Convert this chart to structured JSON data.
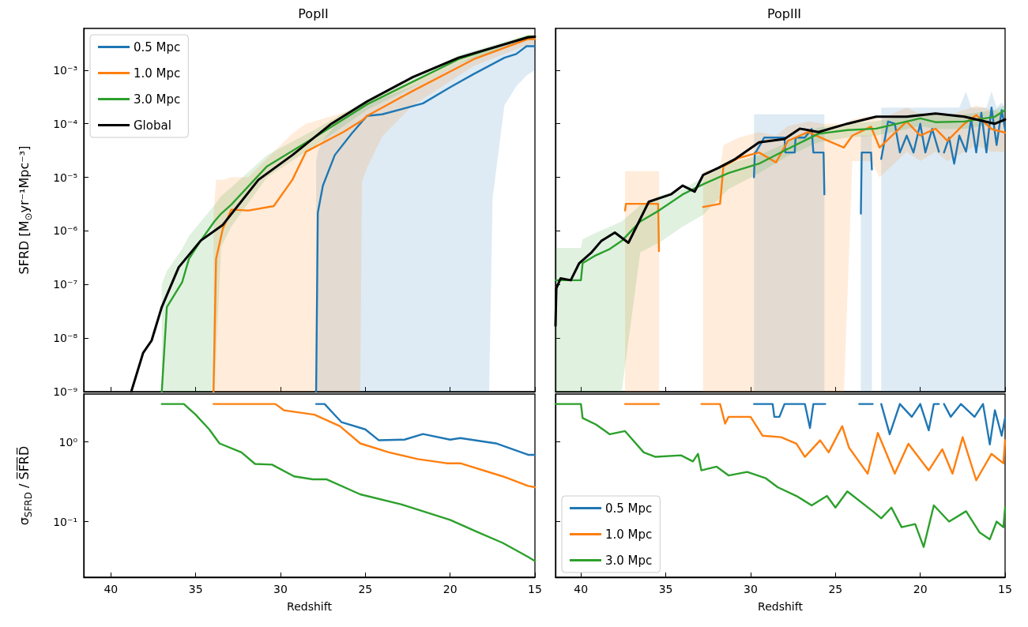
{
  "chart_data": [
    {
      "type": "line",
      "title": "PopII",
      "ylabel": "SFRD [M$_{⊙}$yr⁻¹Mpc⁻³]",
      "log": "y",
      "xlim": [
        41.6,
        15
      ],
      "xticks": [
        40,
        35,
        30,
        25,
        20,
        15
      ],
      "ylim": [
        1e-09,
        0.006
      ],
      "yticks": [
        {
          "value": 1e-09,
          "label": "10⁻⁹"
        },
        {
          "value": 1e-08,
          "label": "10⁻⁸"
        },
        {
          "value": 1e-07,
          "label": "10⁻⁷"
        },
        {
          "value": 1e-06,
          "label": "10⁻⁶"
        },
        {
          "value": 1e-05,
          "label": "10⁻⁵"
        },
        {
          "value": 0.0001,
          "label": "10⁻⁴"
        },
        {
          "value": 0.001,
          "label": "10⁻³"
        }
      ],
      "tick_labels": "y",
      "legend": "top left",
      "series": [
        {
          "name": "0.5 Mpc",
          "color": "#1f77b4",
          "x": [
            27.9,
            27.8,
            27.5,
            26.8,
            25.8,
            24.9,
            24.0,
            21.6,
            20.0,
            18.6,
            17.7,
            17.5,
            16.8,
            16.1,
            15.5,
            15.0
          ],
          "values": [
            1e-09,
            2.2e-06,
            7e-06,
            2.6e-05,
            6.6e-05,
            0.00014,
            0.00015,
            0.00024,
            0.00048,
            0.00085,
            0.0012,
            0.0013,
            0.0017,
            0.002,
            0.0028,
            0.0028
          ],
          "lower": [
            1e-09,
            1e-09,
            1e-09,
            1e-09,
            1e-09,
            1e-09,
            1e-09,
            1e-09,
            1e-09,
            1e-09,
            1e-09,
            4e-06,
            0.00022,
            0.0005,
            0.00079,
            0.001
          ],
          "upper": [
            2e-05,
            3e-05,
            5e-05,
            9e-05,
            0.00015,
            0.00025,
            0.0003,
            0.0006,
            0.0011,
            0.0018,
            0.0023,
            0.0024,
            0.003,
            0.0035,
            0.004,
            0.0043
          ]
        },
        {
          "name": "1.0 Mpc",
          "color": "#ff7f0e",
          "x": [
            33.95,
            33.8,
            33.4,
            32.9,
            31.9,
            30.4,
            29.3,
            28.5,
            26.3,
            25.3,
            25.2,
            24.9,
            24.0,
            22.2,
            18.6,
            15.4,
            15.0
          ],
          "values": [
            1e-09,
            3e-07,
            1.1e-06,
            2.5e-06,
            2.4e-06,
            2.9e-06,
            9e-06,
            3e-05,
            7e-05,
            0.00011,
            0.000115,
            0.00014,
            0.0002,
            0.00041,
            0.0016,
            0.0038,
            0.0038
          ],
          "lower": [
            1e-09,
            1e-09,
            1e-09,
            1e-09,
            1e-09,
            1e-09,
            1e-09,
            1e-09,
            1e-09,
            1e-09,
            8e-06,
            1.5e-05,
            5.8e-05,
            0.00022,
            0.0012,
            0.003,
            0.003
          ],
          "upper": [
            2e-06,
            9e-06,
            9e-06,
            1e-05,
            1e-05,
            3e-05,
            6.6e-05,
            0.0001,
            0.00016,
            0.0002,
            0.00021,
            0.00026,
            0.00035,
            0.00065,
            0.002,
            0.0045,
            0.0046
          ]
        },
        {
          "name": "3.0 Mpc",
          "color": "#2ca02c",
          "x": [
            37.0,
            36.7,
            35.8,
            35.4,
            34.7,
            33.9,
            33.5,
            32.9,
            30.8,
            27.9,
            24.9,
            19.5,
            15.4,
            15.0
          ],
          "values": [
            1e-09,
            3.8e-08,
            1.1e-07,
            3e-07,
            6.6e-07,
            1.5e-06,
            2.1e-06,
            3.1e-06,
            1.6e-05,
            5.8e-05,
            0.00023,
            0.0016,
            0.0042,
            0.0042
          ],
          "lower": [
            1e-09,
            1e-09,
            1e-09,
            1e-09,
            1e-09,
            1e-09,
            5e-07,
            1.2e-06,
            1e-05,
            4e-05,
            0.00018,
            0.0013,
            0.0038,
            0.0038
          ],
          "upper": [
            1e-07,
            1.8e-07,
            4.6e-07,
            8e-07,
            1.5e-06,
            3e-06,
            4.5e-06,
            6.5e-06,
            2.6e-05,
            8e-05,
            0.00028,
            0.0019,
            0.0046,
            0.0046
          ]
        },
        {
          "name": "Global",
          "color": "#000000",
          "x": [
            38.8,
            38.1,
            37.6,
            37.0,
            36.0,
            34.7,
            33.4,
            31.3,
            29.3,
            27.0,
            24.9,
            22.2,
            19.5,
            15.4,
            15.0
          ],
          "values": [
            1e-09,
            5.3e-09,
            9e-09,
            3.8e-08,
            2.1e-07,
            6.6e-07,
            1.3e-06,
            9e-06,
            2.6e-05,
            0.0001,
            0.00026,
            0.00074,
            0.0017,
            0.0041,
            0.0042
          ]
        }
      ]
    },
    {
      "type": "line",
      "title": "PopIII",
      "log": "y",
      "xlim": [
        41.5,
        15
      ],
      "xticks": [
        40,
        35,
        30,
        25,
        20,
        15
      ],
      "ylim": [
        1e-09,
        0.006
      ],
      "yticks": [
        1e-09,
        1e-08,
        1e-07,
        1e-06,
        1e-05,
        0.0001,
        0.001
      ],
      "tick_labels": false,
      "series": [
        {
          "color": "#1f77b4",
          "x": [
            29.8,
            29.75,
            29.7,
            29.2,
            28.0,
            27.95,
            27.4,
            27.35,
            26.8,
            26.4,
            26.3,
            25.7,
            25.65,
            25.6,
            23.5,
            23.45,
            22.9,
            22.85,
            22.8,
            22.3,
            21.9,
            21.5,
            21.2,
            20.8,
            20.4,
            20.0,
            19.7,
            19.3,
            18.9,
            18.8,
            18.6,
            18.3,
            18.0,
            17.7,
            17.3,
            17.0,
            16.7,
            16.4,
            16.1,
            15.8,
            15.5,
            15.2,
            15.0
          ],
          "values": [
            1e-05,
            2.9e-05,
            2.9e-05,
            5.5e-05,
            5.5e-05,
            2.9e-05,
            2.9e-05,
            5.5e-05,
            5.5e-05,
            8e-05,
            2.9e-05,
            2.9e-05,
            4.8e-06,
            null,
            2.1e-06,
            2.9e-05,
            2.9e-05,
            1.4e-05,
            null,
            2.2e-05,
            0.00011,
            0.0001,
            2.9e-05,
            6e-05,
            2.9e-05,
            0.0001,
            2.9e-05,
            8e-05,
            3e-05,
            null,
            2.9e-05,
            5.5e-05,
            1.8e-05,
            6e-05,
            3e-05,
            0.00012,
            2.9e-05,
            0.00016,
            2.9e-05,
            0.0002,
            4e-05,
            0.00018,
            8e-05
          ],
          "lower": [
            1e-09,
            1e-09,
            1e-09,
            1e-09,
            1e-09,
            1e-09,
            1e-09,
            1e-09,
            1e-09,
            1e-09,
            1e-09,
            1e-09,
            1e-09,
            null,
            1e-09,
            1e-09,
            1e-09,
            1e-09,
            null,
            1e-09,
            1e-09,
            1e-09,
            1e-09,
            1e-09,
            1e-09,
            1e-09,
            1e-09,
            1e-09,
            1e-09,
            1e-09,
            1e-09,
            1e-09,
            1e-09,
            1e-09,
            1e-09,
            1e-09,
            1e-09,
            1e-09,
            1e-09,
            1e-09,
            1e-09,
            1e-09,
            1e-09
          ],
          "upper": [
            0.00015,
            0.00015,
            0.00015,
            0.00015,
            0.00015,
            0.00015,
            0.00015,
            0.00015,
            0.00015,
            0.00015,
            0.00015,
            0.00015,
            0.00015,
            null,
            6e-05,
            6e-05,
            6e-05,
            6e-05,
            null,
            0.0002,
            0.0002,
            0.0002,
            0.0002,
            0.0002,
            0.0002,
            0.0002,
            0.0002,
            0.0002,
            0.0002,
            0.0002,
            0.0002,
            0.0002,
            0.0002,
            0.0002,
            0.0004,
            0.0002,
            0.0002,
            0.0002,
            0.0002,
            0.0004,
            0.0002,
            0.00025,
            0.0002
          ]
        },
        {
          "color": "#ff7f0e",
          "x": [
            37.4,
            37.35,
            35.45,
            35.4,
            35.35,
            32.8,
            31.8,
            31.6,
            30.7,
            29.5,
            28.5,
            27.8,
            26.6,
            25.7,
            24.5,
            24.0,
            22.9,
            22.4,
            20.8,
            20.0,
            19.1,
            18.4,
            17.4,
            16.7,
            15.8,
            15.0
          ],
          "values": [
            2.4e-06,
            3.2e-06,
            3.2e-06,
            4.2e-07,
            null,
            2.8e-06,
            3.2e-06,
            1.6e-05,
            2.3e-05,
            2.9e-05,
            1.9e-05,
            4.8e-05,
            7e-05,
            5.2e-05,
            3.6e-05,
            6e-05,
            8.8e-05,
            3.6e-05,
            0.00011,
            6e-05,
            8.1e-05,
            4.8e-05,
            0.0001,
            0.000145,
            8e-05,
            6.8e-05
          ],
          "lower": [
            1e-09,
            1e-09,
            1e-09,
            1e-09,
            null,
            1e-09,
            1e-09,
            1e-09,
            1e-09,
            1e-09,
            1e-09,
            1e-09,
            1e-09,
            1e-09,
            1e-09,
            2e-05,
            2e-05,
            1e-05,
            3e-05,
            2e-05,
            3e-05,
            2e-05,
            3e-05,
            4e-05,
            3e-05,
            3e-05
          ],
          "upper": [
            1.3e-05,
            1.3e-05,
            1.3e-05,
            1.3e-05,
            null,
            1.3e-05,
            1.5e-05,
            4e-05,
            5.5e-05,
            7e-05,
            6e-05,
            9e-05,
            0.00011,
            0.0001,
            0.0001,
            0.00012,
            0.00014,
            0.00012,
            0.0002,
            0.00015,
            0.00016,
            0.00014,
            0.00018,
            0.00022,
            0.00018,
            0.00016
          ]
        },
        {
          "color": "#2ca02c",
          "x": [
            41.5,
            40.0,
            39.9,
            39.2,
            38.3,
            37.6,
            36.5,
            35.4,
            34.0,
            32.8,
            31.3,
            29.5,
            27.8,
            26.0,
            24.3,
            22.6,
            20.0,
            19.1,
            17.4,
            15.6,
            15.0
          ],
          "values": [
            1.2e-07,
            1.2e-07,
            2.5e-07,
            3.4e-07,
            4.6e-07,
            6.5e-07,
            1.5e-06,
            2.4e-06,
            4.8e-06,
            7.4e-06,
            1.2e-05,
            1.8e-05,
            3.4e-05,
            6.5e-05,
            7.6e-05,
            8.1e-05,
            0.000126,
            0.000107,
            0.00011,
            0.000135,
            0.00018
          ],
          "lower": [
            1e-09,
            1e-09,
            1e-09,
            1e-09,
            1e-09,
            1e-09,
            4e-07,
            6e-07,
            1.2e-06,
            2e-06,
            6e-06,
            1.2e-05,
            2.5e-05,
            4.5e-05,
            5.5e-05,
            6e-05,
            9e-05,
            8e-05,
            8e-05,
            0.0001,
            0.00013
          ],
          "upper": [
            4.8e-07,
            4.8e-07,
            7e-07,
            9e-07,
            1.2e-06,
            1.5e-06,
            3e-06,
            4.5e-06,
            6e-06,
            1e-05,
            1.8e-05,
            2.6e-05,
            4.5e-05,
            8.5e-05,
            0.0001,
            0.00011,
            0.00016,
            0.00014,
            0.00015,
            0.00018,
            0.00023
          ]
        },
        {
          "color": "#000000",
          "x": [
            41.5,
            41.45,
            41.2,
            40.6,
            40.1,
            39.4,
            38.8,
            38.0,
            37.2,
            36.0,
            34.7,
            34.0,
            33.3,
            32.8,
            31.9,
            30.9,
            29.5,
            28.0,
            27.1,
            26.0,
            24.3,
            22.6,
            20.8,
            19.1,
            17.4,
            15.6,
            15.0
          ],
          "values": [
            1.7e-08,
            8.5e-08,
            1.3e-07,
            1.2e-07,
            2.5e-07,
            3.9e-07,
            6.5e-07,
            9.3e-07,
            6e-07,
            3.5e-06,
            4.8e-06,
            7e-06,
            5.4e-06,
            1.1e-05,
            1.5e-05,
            2.2e-05,
            4.5e-05,
            5.2e-05,
            8.1e-05,
            7e-05,
            0.0001,
            0.000135,
            0.000135,
            0.000155,
            0.000135,
            0.0001,
            0.00012
          ]
        }
      ]
    },
    {
      "type": "line",
      "xlabel": "Redshift",
      "ylabel": "σ$_{SFRD}$ / S̅F̅R̅D̅",
      "log": "y",
      "xlim": [
        41.6,
        15
      ],
      "xticks": [
        40,
        35,
        30,
        25,
        20,
        15
      ],
      "ylim": [
        0.02,
        4
      ],
      "yticks": [
        {
          "value": 0.1,
          "label": "10⁻¹"
        },
        {
          "value": 1,
          "label": "10⁰"
        }
      ],
      "series": [
        {
          "color": "#1f77b4",
          "x": [
            27.9,
            27.4,
            26.9,
            26.4,
            25.0,
            24.2,
            22.7,
            21.6,
            20.0,
            19.4,
            17.3,
            15.4,
            15.0
          ],
          "values": [
            3.0,
            3.0,
            2.3,
            1.77,
            1.44,
            1.05,
            1.07,
            1.26,
            1.07,
            1.12,
            0.96,
            0.69,
            0.69
          ]
        },
        {
          "color": "#ff7f0e",
          "x": [
            33.95,
            30.3,
            29.8,
            28.0,
            26.5,
            25.3,
            23.6,
            21.9,
            20.2,
            19.4,
            16.9,
            15.4,
            15.0
          ],
          "values": [
            3.0,
            3.0,
            2.5,
            2.2,
            1.58,
            0.96,
            0.74,
            0.61,
            0.54,
            0.54,
            0.37,
            0.28,
            0.27
          ]
        },
        {
          "color": "#2ca02c",
          "x": [
            37.0,
            35.7,
            35.0,
            34.2,
            33.6,
            32.3,
            31.5,
            30.5,
            29.2,
            28.1,
            27.3,
            25.3,
            22.9,
            20.0,
            18.4,
            16.9,
            15.4,
            15.0
          ],
          "values": [
            3.0,
            3.0,
            2.2,
            1.44,
            0.96,
            0.74,
            0.53,
            0.52,
            0.37,
            0.34,
            0.34,
            0.22,
            0.165,
            0.105,
            0.074,
            0.054,
            0.036,
            0.032
          ]
        }
      ]
    },
    {
      "type": "line",
      "xlabel": "Redshift",
      "log": "y",
      "xlim": [
        41.5,
        15
      ],
      "xticks": [
        40,
        35,
        30,
        25,
        20,
        15
      ],
      "ylim": [
        0.02,
        4
      ],
      "yticks": [
        0.1,
        1
      ],
      "tick_labels": "x",
      "legend": "bottom left",
      "series": [
        {
          "name": "0.5 Mpc",
          "color": "#1f77b4",
          "x": [
            29.8,
            28.7,
            28.6,
            28.3,
            28.0,
            26.8,
            26.5,
            26.3,
            25.6,
            25.55,
            23.6,
            22.8,
            22.75,
            22.3,
            21.8,
            21.2,
            20.5,
            20.0,
            19.5,
            19.2,
            18.9,
            18.8,
            18.6,
            18.2,
            17.6,
            16.8,
            16.3,
            15.9,
            15.6,
            15.2,
            15.0
          ],
          "values": [
            3.0,
            3.0,
            2.07,
            2.07,
            3.0,
            3.0,
            1.5,
            3.0,
            3.0,
            null,
            3.0,
            3.0,
            null,
            3.0,
            1.25,
            3.0,
            2.07,
            3.0,
            1.4,
            3.0,
            3.0,
            null,
            3.0,
            2.07,
            3.0,
            2.07,
            3.0,
            0.93,
            2.5,
            1.2,
            2.0
          ]
        },
        {
          "name": "1.0 Mpc",
          "color": "#ff7f0e",
          "x": [
            37.4,
            35.4,
            35.35,
            32.9,
            31.8,
            31.5,
            31.3,
            30.0,
            29.3,
            28.2,
            27.3,
            26.8,
            25.9,
            25.4,
            24.6,
            24.2,
            23.1,
            22.5,
            21.5,
            20.7,
            19.5,
            18.7,
            18.1,
            17.5,
            16.7,
            15.8,
            15.1,
            15.0
          ],
          "values": [
            3.0,
            3.0,
            null,
            3.0,
            3.0,
            1.7,
            2.07,
            2.07,
            1.2,
            1.15,
            0.95,
            0.65,
            1.05,
            0.74,
            1.58,
            0.85,
            0.4,
            1.3,
            0.4,
            0.95,
            0.44,
            0.81,
            0.4,
            1.15,
            0.33,
            0.71,
            0.54,
            1.05
          ]
        },
        {
          "name": "3.0 Mpc",
          "color": "#2ca02c",
          "x": [
            41.5,
            40.0,
            39.9,
            39.1,
            38.3,
            37.4,
            36.3,
            35.6,
            34.1,
            33.4,
            33.1,
            32.9,
            32.0,
            31.3,
            30.2,
            29.1,
            28.4,
            27.3,
            26.4,
            25.5,
            25.0,
            24.3,
            22.8,
            22.3,
            21.7,
            21.1,
            20.3,
            19.8,
            19.2,
            18.3,
            17.3,
            16.5,
            15.9,
            15.5,
            15.1,
            15.0
          ],
          "values": [
            3.0,
            3.0,
            2.0,
            1.65,
            1.25,
            1.37,
            0.74,
            0.65,
            0.68,
            0.57,
            0.71,
            0.44,
            0.49,
            0.38,
            0.42,
            0.35,
            0.27,
            0.21,
            0.16,
            0.21,
            0.15,
            0.24,
            0.135,
            0.11,
            0.15,
            0.085,
            0.093,
            0.048,
            0.16,
            0.1,
            0.135,
            0.073,
            0.06,
            0.1,
            0.085,
            0.15
          ]
        }
      ]
    }
  ]
}
